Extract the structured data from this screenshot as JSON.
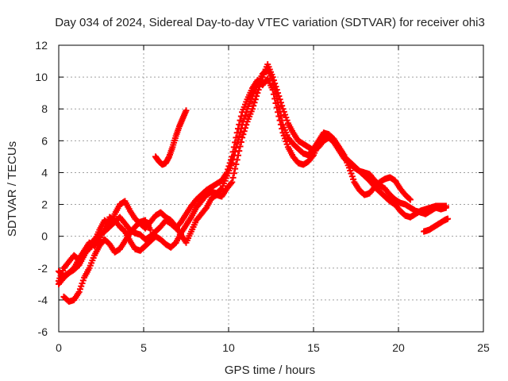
{
  "chart_data": {
    "type": "scatter",
    "title": "Day 034 of 2024, Sidereal Day-to-day VTEC variation (SDTVAR) for receiver ohi3",
    "xlabel": "GPS time / hours",
    "ylabel": "SDTVAR / TECUs",
    "xlim": [
      0,
      25
    ],
    "ylim": [
      -6,
      12
    ],
    "xticks": [
      0,
      5,
      10,
      15,
      20,
      25
    ],
    "yticks": [
      -6,
      -4,
      -2,
      0,
      2,
      4,
      6,
      8,
      10,
      12
    ],
    "grid": true,
    "marker": "+",
    "series": [
      {
        "name": "SDTVAR",
        "color": "#ff0000",
        "tracks": [
          {
            "x": [
              0.0,
              0.3,
              0.6,
              0.9,
              1.2,
              1.5,
              1.8,
              2.1,
              2.4,
              2.7,
              3.0,
              3.3,
              3.6,
              3.9,
              4.2,
              4.5,
              4.8,
              5.1,
              5.4,
              5.7,
              6.0,
              6.3,
              6.6,
              6.9,
              7.2,
              7.5,
              7.8,
              8.1,
              8.4,
              8.7,
              9.0,
              9.3,
              9.6,
              9.9,
              10.2,
              10.5,
              10.8,
              11.1,
              11.4,
              11.7,
              12.0,
              12.3,
              12.6,
              12.9,
              13.2,
              13.5,
              13.8,
              14.1,
              14.4,
              14.7,
              15.0,
              15.3,
              15.6,
              15.9,
              16.2,
              16.5,
              16.8,
              17.1,
              17.4,
              17.7,
              18.0,
              18.3,
              18.6,
              18.9,
              19.2,
              19.5,
              19.8,
              20.1,
              20.4,
              20.7,
              21.0,
              21.3,
              21.6,
              21.9,
              22.2,
              22.5,
              22.8
            ],
            "y": [
              -3.0,
              -2.6,
              -2.3,
              -2.1,
              -1.8,
              -1.2,
              -0.6,
              -0.2,
              0.1,
              0.3,
              0.6,
              0.9,
              1.2,
              0.8,
              0.4,
              0.2,
              0.1,
              -0.2,
              0.0,
              0.3,
              0.6,
              1.0,
              0.8,
              0.5,
              0.9,
              1.4,
              1.9,
              2.3,
              2.6,
              2.9,
              3.1,
              3.3,
              3.5,
              4.0,
              5.0,
              6.5,
              7.8,
              8.6,
              9.3,
              9.8,
              9.5,
              9.9,
              9.2,
              7.8,
              6.5,
              5.6,
              5.0,
              4.6,
              4.5,
              4.7,
              5.1,
              5.8,
              6.3,
              6.2,
              6.0,
              5.6,
              5.0,
              4.7,
              4.4,
              4.1,
              3.8,
              3.5,
              3.1,
              2.8,
              2.5,
              2.2,
              2.0,
              1.6,
              1.3,
              1.2,
              1.4,
              1.6,
              1.7,
              1.8,
              1.9,
              1.9,
              1.9
            ]
          },
          {
            "x": [
              0.0,
              0.3,
              0.6,
              0.9,
              1.2,
              1.5,
              1.8,
              2.1,
              2.4,
              2.7,
              3.0,
              3.3,
              3.6,
              3.9,
              4.2,
              4.5,
              4.8,
              5.1,
              5.4,
              5.7,
              6.0,
              6.3,
              6.6,
              6.9,
              7.2,
              7.5,
              7.8,
              8.1,
              8.4,
              8.7,
              9.0,
              9.3,
              9.6,
              9.9,
              10.2,
              10.5,
              10.8,
              11.1,
              11.4,
              11.7,
              12.0,
              12.3,
              12.6,
              12.9,
              13.2,
              13.5,
              13.8,
              14.1,
              14.4,
              14.7,
              15.0,
              15.3,
              15.6,
              15.9,
              16.2,
              16.5,
              16.8,
              17.1,
              17.4,
              17.7,
              18.0,
              18.3,
              18.6,
              18.9,
              19.2,
              19.5,
              19.8,
              20.1,
              20.4,
              20.7
            ],
            "y": [
              -2.2,
              -2.5,
              -2.3,
              -2.0,
              -1.4,
              -0.9,
              -0.4,
              -0.6,
              -0.2,
              0.5,
              1.2,
              1.0,
              0.6,
              0.3,
              -0.3,
              -0.8,
              -0.9,
              -0.6,
              -0.3,
              0.0,
              -0.2,
              -0.5,
              -0.7,
              -0.4,
              0.2,
              0.7,
              1.2,
              1.8,
              2.2,
              2.6,
              2.8,
              2.7,
              3.0,
              3.8,
              4.6,
              5.8,
              7.0,
              8.0,
              8.8,
              9.5,
              10.2,
              10.5,
              9.8,
              8.4,
              7.0,
              6.2,
              5.8,
              5.5,
              5.2,
              5.1,
              5.5,
              6.0,
              6.5,
              6.4,
              6.1,
              5.6,
              5.1,
              4.3,
              3.4,
              2.9,
              2.6,
              2.7,
              3.1,
              3.4,
              3.6,
              3.7,
              3.5,
              3.0,
              2.6,
              2.3
            ]
          },
          {
            "x": [
              0.0,
              0.3,
              0.6,
              0.9,
              1.2,
              1.5,
              1.8,
              2.1,
              2.4,
              2.7,
              3.0,
              3.3,
              3.6,
              3.9,
              4.2,
              4.5,
              4.8,
              5.1,
              5.4,
              5.7,
              6.0,
              6.3,
              6.6,
              6.9,
              7.2,
              7.5,
              7.8,
              8.1,
              8.4,
              8.7,
              9.0,
              9.3,
              9.6,
              9.9,
              10.2,
              10.5,
              10.8,
              11.1,
              11.4,
              11.7,
              12.0,
              12.3,
              12.6,
              12.9,
              13.2,
              13.5,
              13.8,
              14.1,
              14.4,
              14.7,
              15.0,
              15.3,
              15.6,
              15.9,
              16.2,
              16.5,
              16.8,
              17.1,
              17.4,
              17.7,
              18.0,
              18.3,
              18.6,
              18.9,
              19.2,
              19.5,
              19.8,
              20.1,
              20.4,
              20.7,
              21.0,
              21.3,
              21.6,
              21.9,
              22.2,
              22.5,
              22.8
            ],
            "y": [
              -2.8,
              -2.0,
              -1.6,
              -1.2,
              -1.5,
              -1.0,
              -0.8,
              -0.3,
              0.4,
              1.0,
              0.7,
              1.4,
              2.0,
              2.2,
              1.6,
              1.1,
              0.8,
              0.5,
              0.9,
              1.3,
              1.5,
              1.2,
              1.0,
              0.6,
              0.1,
              -0.4,
              0.3,
              1.0,
              1.4,
              1.8,
              2.4,
              2.6,
              2.5,
              3.0,
              3.4,
              4.8,
              6.2,
              7.2,
              8.0,
              9.0,
              10.0,
              10.8,
              10.0,
              9.0,
              8.0,
              7.1,
              6.5,
              6.0,
              5.8,
              5.6,
              5.4,
              5.6,
              6.0,
              6.2,
              5.9,
              5.4,
              4.9,
              4.6,
              4.3,
              4.1,
              4.0,
              3.9,
              3.5,
              3.2,
              3.0,
              2.6,
              2.3,
              2.1,
              2.0,
              1.8,
              1.6,
              1.5,
              1.4,
              1.6,
              1.8,
              1.7,
              1.8
            ]
          },
          {
            "x": [
              0.3,
              0.6,
              0.9,
              1.2,
              1.5,
              1.8,
              2.1,
              2.4,
              2.7,
              3.0,
              3.3,
              3.6,
              3.9,
              4.2,
              4.5,
              4.8,
              5.1,
              5.4
            ],
            "y": [
              -3.8,
              -4.1,
              -4.0,
              -3.5,
              -2.6,
              -2.0,
              -1.2,
              -0.6,
              -0.2,
              -0.5,
              -1.0,
              -0.8,
              -0.3,
              0.2,
              0.6,
              0.9,
              1.0,
              0.4
            ]
          },
          {
            "x": [
              5.7,
              5.9,
              6.1,
              6.3,
              6.5,
              6.7,
              6.9,
              7.1,
              7.3,
              7.5
            ],
            "y": [
              5.0,
              4.7,
              4.5,
              4.6,
              5.0,
              5.6,
              6.3,
              6.9,
              7.4,
              7.9
            ]
          },
          {
            "x": [
              21.5,
              21.8,
              22.1,
              22.4,
              22.7,
              22.9
            ],
            "y": [
              0.3,
              0.4,
              0.6,
              0.8,
              1.0,
              1.1
            ]
          }
        ]
      }
    ]
  }
}
